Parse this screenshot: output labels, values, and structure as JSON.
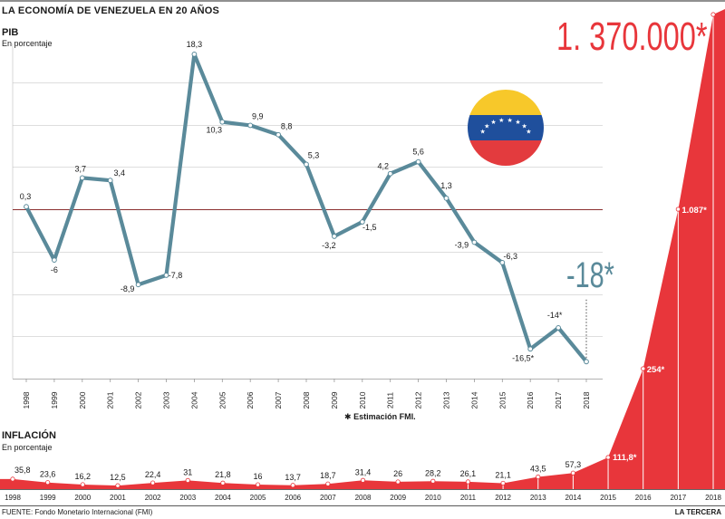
{
  "header": {
    "title": "LA ECONOMÍA DE VENEZUELA EN 20 AÑOS"
  },
  "pib": {
    "title": "PIB",
    "subtitle": "En porcentaje"
  },
  "inflacion": {
    "title": "INFLACIÓN",
    "subtitle": "En porcentaje"
  },
  "note": {
    "marker": "✱",
    "text": "Estimación FMI."
  },
  "footer": {
    "source": "FUENTE: Fondo Monetario Internacional (FMI)",
    "brand": "LA TERCERA"
  },
  "colors": {
    "pib_line": "#5a8a9a",
    "inflation": "#e8363b",
    "zero_line": "#8b2f2f",
    "grid": "#bdbdbd",
    "flag_yellow": "#f7c82a",
    "flag_blue": "#1f4f9c",
    "flag_red": "#e33b3e"
  },
  "chart_data": [
    {
      "type": "line",
      "title": "PIB",
      "subtitle": "En porcentaje",
      "grid": true,
      "x": [
        "1998",
        "1999",
        "2000",
        "2001",
        "2002",
        "2003",
        "2004",
        "2005",
        "2006",
        "2007",
        "2008",
        "2009",
        "2010",
        "2011",
        "2012",
        "2013",
        "2014",
        "2015",
        "2016",
        "2017",
        "2018"
      ],
      "series": [
        {
          "values": [
            0.3,
            -6,
            3.7,
            3.4,
            -8.9,
            -7.8,
            18.3,
            10.3,
            9.9,
            8.8,
            5.3,
            -3.2,
            -1.5,
            4.2,
            5.6,
            1.3,
            -3.9,
            -6.3,
            -16.5,
            -14,
            -18
          ],
          "labels": [
            "0,3",
            "-6",
            "3,7",
            "3,4",
            "-8,9",
            "-7,8",
            "18,3",
            "10,3",
            "9,9",
            "8,8",
            "5,3",
            "-3,2",
            "-1,5",
            "4,2",
            "5,6",
            "1,3",
            "-3,9",
            "-6,3",
            "-16,5*",
            "-14*",
            ""
          ]
        }
      ],
      "highlight_label": "-18*",
      "ylim": [
        -20,
        20
      ]
    },
    {
      "type": "area",
      "title": "INFLACIÓN",
      "subtitle": "En porcentaje",
      "x": [
        "1998",
        "1999",
        "2000",
        "2001",
        "2002",
        "2003",
        "2004",
        "2005",
        "2006",
        "2007",
        "2008",
        "2009",
        "2010",
        "2011",
        "2012",
        "2013",
        "2014",
        "2015",
        "2016",
        "2017",
        "2018"
      ],
      "series": [
        {
          "values": [
            35.8,
            23.6,
            16.2,
            12.5,
            22.4,
            31,
            21.8,
            16,
            13.7,
            18.7,
            31.4,
            26,
            28.2,
            26.1,
            21.1,
            43.5,
            57.3,
            111.8,
            254,
            1087,
            1370000
          ],
          "labels": [
            "35,8",
            "23,6",
            "16,2",
            "12,5",
            "22,4",
            "31",
            "21,8",
            "16",
            "13,7",
            "18,7",
            "31,4",
            "26",
            "28,2",
            "26,1",
            "21,1",
            "43,5",
            "57,3",
            "111,8*",
            "254*",
            "1.087*",
            ""
          ]
        }
      ],
      "highlight_label": "1. 370.000*"
    }
  ]
}
